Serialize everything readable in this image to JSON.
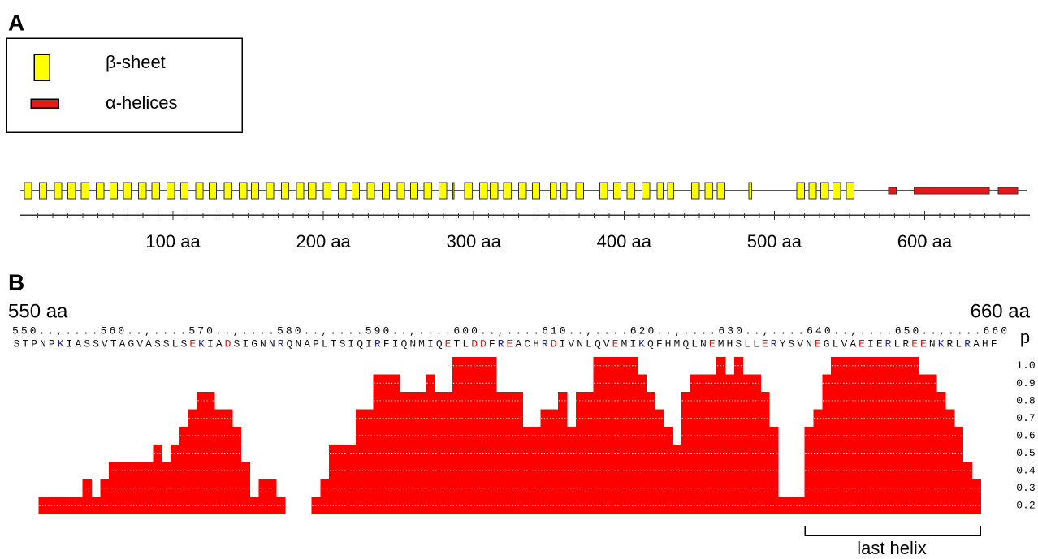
{
  "panel_a": {
    "label": "A",
    "legend": [
      {
        "name": "β-sheet",
        "color": "#ffff00"
      },
      {
        "name": "α-helices",
        "color": "#e81818"
      }
    ],
    "xlim": [
      0,
      670
    ],
    "xticks": [
      {
        "value": 100,
        "label": "100 aa"
      },
      {
        "value": 200,
        "label": "200 aa"
      },
      {
        "value": 300,
        "label": "300 aa"
      },
      {
        "value": 400,
        "label": "400 aa"
      },
      {
        "value": 500,
        "label": "500 aa"
      },
      {
        "value": 600,
        "label": "600 aa"
      }
    ],
    "minor_tick_interval": 10,
    "sheets": [
      [
        1,
        6
      ],
      [
        11,
        16
      ],
      [
        21,
        26
      ],
      [
        30,
        35
      ],
      [
        39,
        44
      ],
      [
        49,
        54
      ],
      [
        58,
        63
      ],
      [
        67,
        72
      ],
      [
        77,
        82
      ],
      [
        86,
        91
      ],
      [
        96,
        101
      ],
      [
        105,
        110
      ],
      [
        115,
        120
      ],
      [
        124,
        129
      ],
      [
        134,
        139
      ],
      [
        144,
        149
      ],
      [
        152,
        157
      ],
      [
        162,
        167
      ],
      [
        172,
        177
      ],
      [
        182,
        187
      ],
      [
        190,
        195
      ],
      [
        200,
        205
      ],
      [
        210,
        215
      ],
      [
        219,
        224
      ],
      [
        229,
        234
      ],
      [
        239,
        244
      ],
      [
        249,
        254
      ],
      [
        258,
        263
      ],
      [
        267,
        272
      ],
      [
        277,
        282
      ],
      [
        286,
        287
      ],
      [
        294,
        299
      ],
      [
        304,
        309
      ],
      [
        311,
        316
      ],
      [
        320,
        325
      ],
      [
        330,
        335
      ],
      [
        339,
        344
      ],
      [
        351,
        355
      ],
      [
        358,
        362
      ],
      [
        368,
        373
      ],
      [
        384,
        389
      ],
      [
        393,
        398
      ],
      [
        402,
        407
      ],
      [
        412,
        417
      ],
      [
        422,
        426
      ],
      [
        429,
        433
      ],
      [
        445,
        450
      ],
      [
        454,
        459
      ],
      [
        462,
        467
      ],
      [
        483,
        485
      ],
      [
        515,
        520
      ],
      [
        523,
        528
      ],
      [
        531,
        536
      ],
      [
        539,
        544
      ],
      [
        548,
        553
      ]
    ],
    "helices": [
      [
        576,
        581
      ],
      [
        593,
        643
      ],
      [
        649,
        662
      ]
    ]
  },
  "panel_b": {
    "label": "B",
    "start_label": "550 aa",
    "end_label": "660 aa",
    "ruler": "550..,....560..,....570..,....580..,....590..,....600..,....610..,....620..,....630..,....640..,....650..,....660",
    "sequence": "STPNPKIASSVTAGVASSLSEKIADSIGNNRQNAPLTSIQIRFIQNMIQETLDDFREACHRDIVNLQVEMIKQFHMQLNEMHSLLERYSVNEGLVAEIERLREENKRLRAHF",
    "residue_colors": "kkkkkbkkkkkkkkkkkkkkrbkkrkkkkkbkkkkkkkkkkbkkkkkkkrkkrrkbrkkkbrkkkkkkrkkbkkkkkkkrkkkkkrbkkkkrkkkkrkkbkkrrkbkkbkkk",
    "color_key": {
      "k": "#111111",
      "r": "#e01010",
      "b": "#2020a0"
    },
    "y_label": "p",
    "bar_color": "#ff0000",
    "ylim": [
      0.15,
      1.05
    ],
    "yticks": [
      0.2,
      0.3,
      0.4,
      0.5,
      0.6,
      0.7,
      0.8,
      0.9,
      {
        "value": 1,
        "label": "1.0"
      }
    ],
    "values": [
      null,
      null,
      null,
      0.2,
      0.2,
      0.2,
      0.2,
      0.2,
      0.3,
      0.2,
      0.3,
      0.4,
      0.4,
      0.4,
      0.4,
      0.4,
      0.5,
      0.4,
      0.5,
      0.6,
      0.7,
      0.8,
      0.8,
      0.7,
      0.7,
      0.6,
      0.4,
      0.2,
      0.3,
      0.3,
      0.2,
      null,
      null,
      null,
      0.2,
      0.3,
      0.5,
      0.5,
      0.5,
      0.7,
      0.7,
      0.9,
      0.9,
      0.9,
      0.8,
      0.8,
      0.8,
      0.9,
      0.8,
      0.8,
      1,
      1,
      1,
      1,
      1,
      0.8,
      0.8,
      0.8,
      0.6,
      0.6,
      0.7,
      0.7,
      0.8,
      0.6,
      0.8,
      0.8,
      1,
      1,
      1,
      1,
      1,
      0.9,
      0.8,
      0.7,
      0.6,
      0.5,
      0.8,
      0.9,
      0.9,
      0.9,
      1,
      0.9,
      1,
      0.9,
      0.9,
      0.8,
      0.6,
      0.2,
      0.2,
      0.2,
      0.6,
      0.7,
      0.9,
      1,
      1,
      1,
      1,
      1,
      1,
      1,
      1,
      1,
      1,
      0.9,
      0.9,
      0.8,
      0.7,
      0.6,
      0.4,
      0.3,
      null,
      null
    ],
    "annotation": "last helix"
  }
}
